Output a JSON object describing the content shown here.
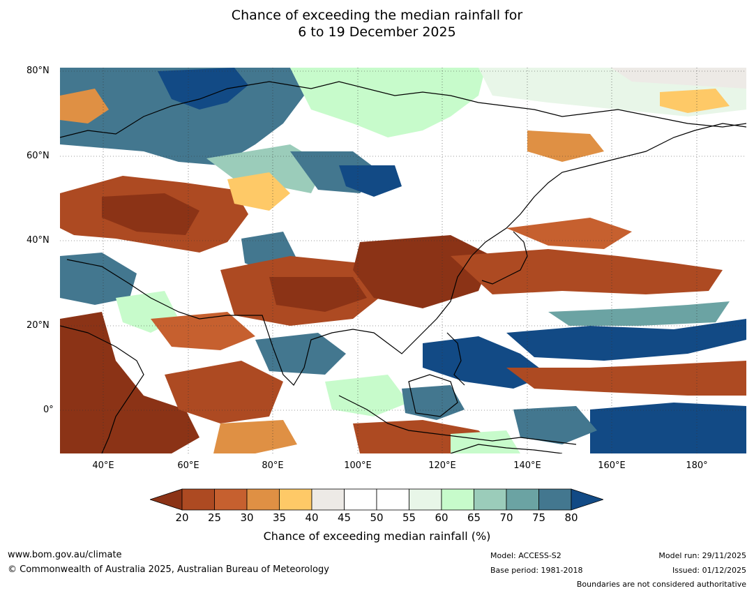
{
  "title": {
    "line1": "Chance of exceeding the median rainfall for",
    "line2": "6 to 19 December 2025"
  },
  "map": {
    "lat_labels": [
      "80°N",
      "60°N",
      "40°N",
      "20°N",
      "0°"
    ],
    "lon_labels": [
      "40°E",
      "60°E",
      "80°E",
      "100°E",
      "120°E",
      "140°E",
      "160°E",
      "180°"
    ]
  },
  "legend": {
    "ticks": [
      "20",
      "25",
      "30",
      "35",
      "40",
      "45",
      "50",
      "55",
      "60",
      "65",
      "70",
      "75",
      "80"
    ],
    "colors": [
      "#8b3316",
      "#ad4a22",
      "#c6602f",
      "#df9044",
      "#fec967",
      "#edeae6",
      "#ffffff",
      "#ffffff",
      "#e8f6e8",
      "#c7fbcb",
      "#9bccba",
      "#6ba3a3",
      "#43778f",
      "#124a85"
    ],
    "label": "Chance of exceeding median rainfall (%)"
  },
  "footer": {
    "website": "www.bom.gov.au/climate",
    "copyright": "© Commonwealth of Australia 2025, Australian Bureau of Meteorology",
    "model": "Model: ACCESS-S2",
    "base_period": "Base period: 1981-2018",
    "model_run": "Model run: 29/11/2025",
    "issued": "Issued: 01/12/2025",
    "disclaimer": "Boundaries are not considered authoritative"
  }
}
